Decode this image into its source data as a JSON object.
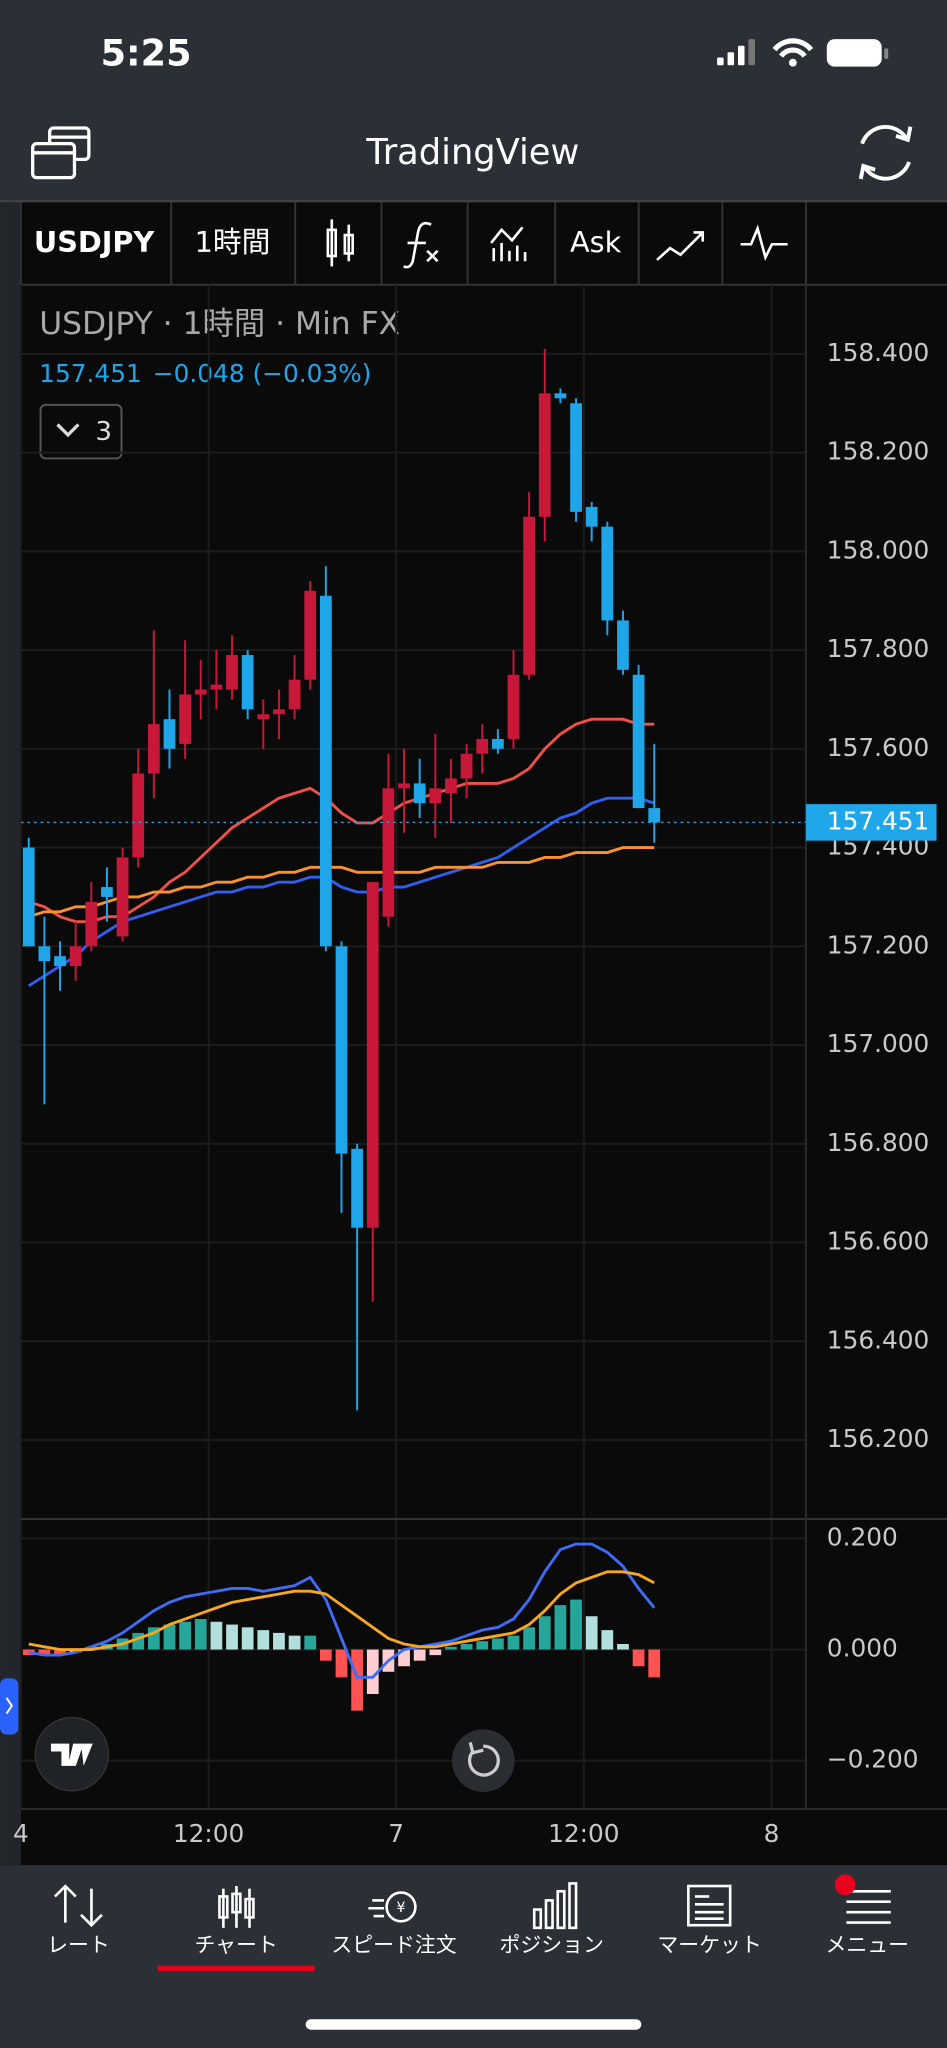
{
  "status_bar": {
    "time": "5:25"
  },
  "header": {
    "title": "TradingView"
  },
  "toolbar": {
    "symbol": "USDJPY",
    "interval": "1時間",
    "price_side": "Ask"
  },
  "legend": {
    "title": "USDJPY · 1時間 · Min FX",
    "quote": "157.451",
    "change": "−0.048 (−0.03%)",
    "indicator_count": 3
  },
  "nav": {
    "items": [
      "レート",
      "チャート",
      "スピード注文",
      "ポジション",
      "マーケット",
      "メニュー"
    ],
    "active": 1
  },
  "chart_data": [
    {
      "type": "candlestick",
      "open": [
        157.4,
        157.2,
        157.18,
        157.16,
        157.2,
        157.32,
        157.22,
        157.38,
        157.55,
        157.66,
        157.61,
        157.71,
        157.72,
        157.72,
        157.79,
        157.66,
        157.67,
        157.68,
        157.74,
        157.91,
        157.2,
        156.79,
        156.63,
        157.26,
        157.52,
        157.53,
        157.49,
        157.51,
        157.54,
        157.59,
        157.62,
        157.62,
        157.75,
        158.07,
        158.32,
        158.3,
        158.09,
        158.05,
        157.86,
        157.75,
        157.48
      ],
      "high": [
        157.42,
        157.26,
        157.21,
        157.25,
        157.33,
        157.36,
        157.4,
        157.6,
        157.84,
        157.72,
        157.82,
        157.78,
        157.8,
        157.83,
        157.8,
        157.7,
        157.72,
        157.79,
        157.94,
        157.97,
        157.21,
        156.8,
        157.33,
        157.59,
        157.6,
        157.58,
        157.63,
        157.58,
        157.61,
        157.65,
        157.64,
        157.8,
        158.12,
        158.41,
        158.33,
        158.31,
        158.1,
        158.06,
        157.88,
        157.77,
        157.61
      ],
      "low": [
        157.2,
        156.88,
        157.11,
        157.13,
        157.19,
        157.25,
        157.21,
        157.36,
        157.5,
        157.56,
        157.58,
        157.66,
        157.68,
        157.7,
        157.66,
        157.6,
        157.62,
        157.66,
        157.72,
        157.19,
        156.66,
        156.26,
        156.48,
        157.24,
        157.43,
        157.46,
        157.42,
        157.45,
        157.5,
        157.55,
        157.59,
        157.6,
        157.74,
        158.02,
        158.3,
        158.06,
        158.02,
        157.83,
        157.75,
        157.48,
        157.41
      ],
      "close": [
        157.2,
        157.17,
        157.16,
        157.2,
        157.29,
        157.3,
        157.38,
        157.55,
        157.65,
        157.6,
        157.71,
        157.72,
        157.73,
        157.79,
        157.68,
        157.67,
        157.68,
        157.74,
        157.92,
        157.2,
        156.78,
        156.63,
        157.33,
        157.52,
        157.53,
        157.49,
        157.52,
        157.54,
        157.59,
        157.62,
        157.6,
        157.75,
        158.07,
        158.32,
        158.31,
        158.08,
        158.05,
        157.86,
        157.76,
        157.48,
        157.451
      ],
      "up_color": "#c8183a",
      "down_color": "#1ea6e8",
      "series": [
        {
          "color": "#ef5047",
          "values": [
            157.29,
            157.28,
            157.26,
            157.25,
            157.25,
            157.26,
            157.26,
            157.28,
            157.3,
            157.33,
            157.35,
            157.38,
            157.41,
            157.44,
            157.46,
            157.48,
            157.5,
            157.51,
            157.52,
            157.5,
            157.47,
            157.45,
            157.45,
            157.47,
            157.49,
            157.5,
            157.51,
            157.52,
            157.53,
            157.53,
            157.53,
            157.54,
            157.56,
            157.6,
            157.63,
            157.65,
            157.66,
            157.66,
            157.66,
            157.65,
            157.65
          ]
        },
        {
          "color": "#2f5ef0",
          "values": [
            157.12,
            157.14,
            157.16,
            157.18,
            157.21,
            157.23,
            157.25,
            157.26,
            157.27,
            157.28,
            157.29,
            157.3,
            157.31,
            157.31,
            157.32,
            157.32,
            157.33,
            157.33,
            157.34,
            157.34,
            157.32,
            157.31,
            157.31,
            157.32,
            157.32,
            157.33,
            157.34,
            157.35,
            157.36,
            157.37,
            157.38,
            157.4,
            157.42,
            157.44,
            157.46,
            157.47,
            157.49,
            157.5,
            157.5,
            157.5,
            157.49
          ]
        },
        {
          "color": "#f7922f",
          "values": [
            157.26,
            157.27,
            157.27,
            157.28,
            157.28,
            157.29,
            157.3,
            157.3,
            157.31,
            157.31,
            157.32,
            157.32,
            157.33,
            157.33,
            157.34,
            157.34,
            157.35,
            157.35,
            157.36,
            157.36,
            157.36,
            157.35,
            157.35,
            157.35,
            157.35,
            157.35,
            157.36,
            157.36,
            157.36,
            157.36,
            157.37,
            157.37,
            157.37,
            157.38,
            157.38,
            157.39,
            157.39,
            157.39,
            157.4,
            157.4,
            157.4
          ]
        }
      ],
      "ylim": [
        156.04,
        158.54
      ],
      "yticks": [
        {
          "value": 158.4,
          "label": "158.400"
        },
        {
          "value": 158.2,
          "label": "158.200"
        },
        {
          "value": 158.0,
          "label": "158.000"
        },
        {
          "value": 157.8,
          "label": "157.800"
        },
        {
          "value": 157.6,
          "label": "157.600"
        },
        {
          "value": 157.4,
          "label": "157.400"
        },
        {
          "value": 157.2,
          "label": "157.200"
        },
        {
          "value": 157.0,
          "label": "157.000"
        },
        {
          "value": 156.8,
          "label": "156.800"
        },
        {
          "value": 156.6,
          "label": "156.600"
        },
        {
          "value": 156.4,
          "label": "156.400"
        },
        {
          "value": 156.2,
          "label": "156.200"
        }
      ],
      "xlim": [
        0,
        50.2
      ],
      "xticks": [
        {
          "value": 0,
          "label": "4"
        },
        {
          "value": 12,
          "label": "12:00"
        },
        {
          "value": 24,
          "label": "7"
        },
        {
          "value": 36,
          "label": "12:00"
        },
        {
          "value": 48,
          "label": "8"
        }
      ],
      "grid": true,
      "price_line": {
        "value": 157.451,
        "label": "157.451",
        "color": "#1ea6e8"
      }
    },
    {
      "type": "macd",
      "histogram": [
        -0.01,
        -0.01,
        -0.01,
        -0.005,
        0.005,
        0.01,
        0.02,
        0.03,
        0.04,
        0.045,
        0.05,
        0.055,
        0.05,
        0.045,
        0.04,
        0.035,
        0.03,
        0.025,
        0.025,
        -0.02,
        -0.05,
        -0.11,
        -0.08,
        -0.04,
        -0.03,
        -0.02,
        -0.01,
        0.005,
        0.01,
        0.015,
        0.02,
        0.025,
        0.04,
        0.06,
        0.08,
        0.09,
        0.06,
        0.035,
        0.01,
        -0.03,
        -0.05
      ],
      "hist_colors": [
        "#26a69a",
        "#b2dfdb",
        "#ff5252",
        "#ffcdd2"
      ],
      "series": [
        {
          "color": "#3f6cf5",
          "values": [
            -0.005,
            -0.01,
            -0.01,
            -0.005,
            0.005,
            0.015,
            0.03,
            0.05,
            0.07,
            0.085,
            0.095,
            0.1,
            0.105,
            0.11,
            0.11,
            0.105,
            0.11,
            0.115,
            0.13,
            0.09,
            0.02,
            -0.05,
            -0.05,
            -0.02,
            0.0,
            0.005,
            0.01,
            0.015,
            0.025,
            0.035,
            0.04,
            0.055,
            0.09,
            0.14,
            0.18,
            0.19,
            0.19,
            0.175,
            0.15,
            0.11,
            0.075
          ]
        },
        {
          "color": "#f5a623",
          "values": [
            0.01,
            0.005,
            0.0,
            0.0,
            0.0,
            0.005,
            0.01,
            0.02,
            0.03,
            0.045,
            0.055,
            0.065,
            0.075,
            0.085,
            0.09,
            0.095,
            0.1,
            0.105,
            0.105,
            0.1,
            0.08,
            0.06,
            0.04,
            0.02,
            0.01,
            0.005,
            0.005,
            0.01,
            0.015,
            0.02,
            0.025,
            0.03,
            0.045,
            0.07,
            0.1,
            0.12,
            0.13,
            0.14,
            0.14,
            0.135,
            0.12
          ]
        }
      ],
      "ylim": [
        -0.287,
        0.235
      ],
      "yticks": [
        {
          "value": 0.2,
          "label": "0.200"
        },
        {
          "value": 0,
          "label": "0.000"
        },
        {
          "value": -0.2,
          "label": "−0.200"
        }
      ],
      "grid": true
    }
  ]
}
